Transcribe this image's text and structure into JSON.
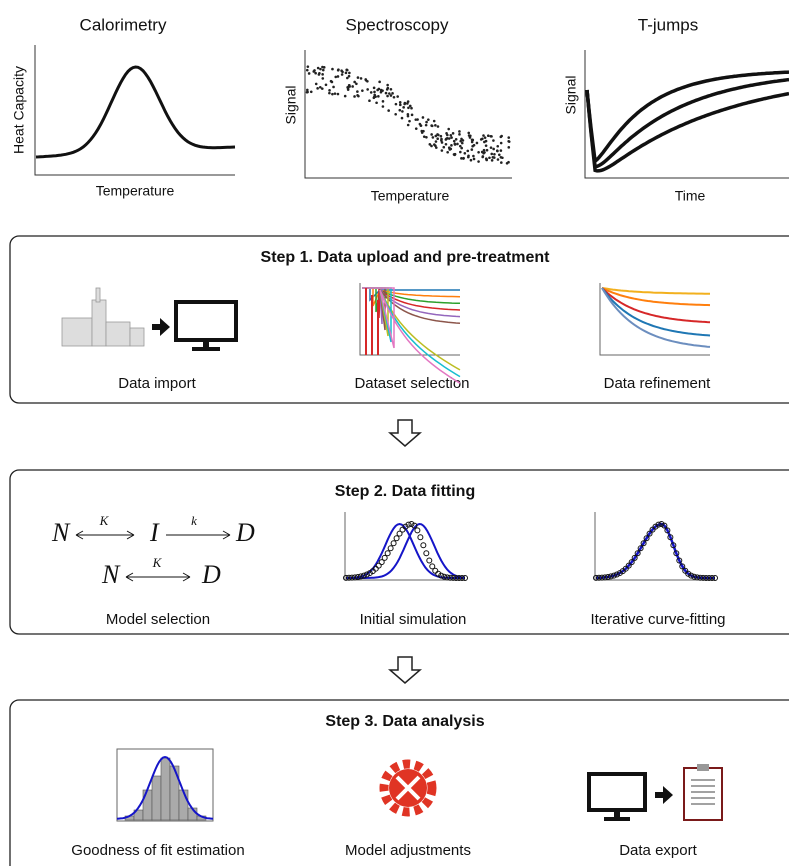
{
  "panels": [
    {
      "title": "Calorimetry",
      "ylabel": "Heat Capacity",
      "xlabel": "Temperature"
    },
    {
      "title": "Spectroscopy",
      "ylabel": "Signal",
      "xlabel": "Temperature"
    },
    {
      "title": "T-jumps",
      "ylabel": "Signal",
      "xlabel": "Time"
    }
  ],
  "steps": [
    {
      "title": "Step 1. Data upload and pre-treatment",
      "items": [
        "Data import",
        "Dataset selection",
        "Data refinement"
      ]
    },
    {
      "title": "Step 2. Data fitting",
      "items": [
        "Model selection",
        "Initial simulation",
        "Iterative curve-fitting"
      ]
    },
    {
      "title": "Step 3. Data analysis",
      "items": [
        "Goodness of fit estimation",
        "Model adjustments",
        "Data export"
      ]
    }
  ],
  "equations": [
    [
      "N",
      "K",
      "I",
      "k",
      "D"
    ],
    [
      "N",
      "K",
      "D"
    ]
  ]
}
